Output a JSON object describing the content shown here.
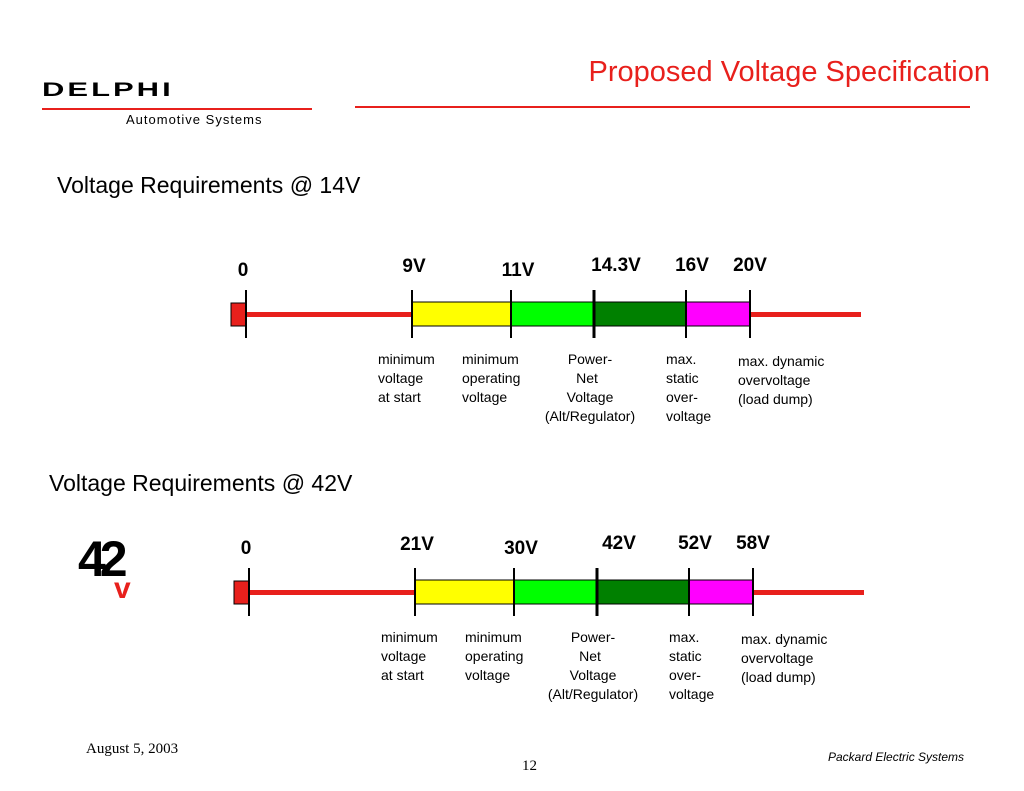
{
  "slide": {
    "title": "Proposed Voltage Specification",
    "logo": {
      "word": "DELPHI",
      "subtitle": "Automotive Systems"
    },
    "badge_icon": "42v-logo-icon",
    "badge_text": {
      "number": "42",
      "unit": "v"
    },
    "footer": {
      "date": "August 5, 2003",
      "page": "12",
      "company": "Packard Electric Systems"
    }
  },
  "colors": {
    "accent": "#e8201c",
    "line": "#e8201c",
    "start_marker": "#e8201c",
    "yellow": "#ffff00",
    "light_green": "#00ff00",
    "dark_green": "#008000",
    "magenta": "#ff00ff"
  },
  "scales": [
    {
      "heading": "Voltage Requirements @ 14V",
      "ticks": [
        "0",
        "9V",
        "11V",
        "14.3V",
        "16V",
        "20V"
      ],
      "segments": [
        {
          "color": "yellow"
        },
        {
          "color": "light_green"
        },
        {
          "color": "dark_green"
        },
        {
          "color": "magenta"
        }
      ],
      "descriptions": [
        {
          "lines": [
            "minimum",
            "voltage",
            "at start"
          ]
        },
        {
          "lines": [
            "minimum",
            "operating",
            "voltage"
          ]
        },
        {
          "lines": [
            "Power-",
            "Net",
            "Voltage",
            "(Alt/Regulator)"
          ]
        },
        {
          "lines": [
            "max.",
            "static",
            "over-",
            "voltage"
          ]
        },
        {
          "lines": [
            "max. dynamic",
            "overvoltage",
            "(load dump)"
          ]
        }
      ]
    },
    {
      "heading": "Voltage Requirements @ 42V",
      "ticks": [
        "0",
        "21V",
        "30V",
        "42V",
        "52V",
        "58V"
      ],
      "segments": [
        {
          "color": "yellow"
        },
        {
          "color": "light_green"
        },
        {
          "color": "dark_green"
        },
        {
          "color": "magenta"
        }
      ],
      "descriptions": [
        {
          "lines": [
            "minimum",
            "voltage",
            "at start"
          ]
        },
        {
          "lines": [
            "minimum",
            "operating",
            "voltage"
          ]
        },
        {
          "lines": [
            "Power-",
            "Net",
            "Voltage",
            "(Alt/Regulator)"
          ]
        },
        {
          "lines": [
            "max.",
            "static",
            "over-",
            "voltage"
          ]
        },
        {
          "lines": [
            "max. dynamic",
            "overvoltage",
            "(load dump)"
          ]
        }
      ]
    }
  ]
}
